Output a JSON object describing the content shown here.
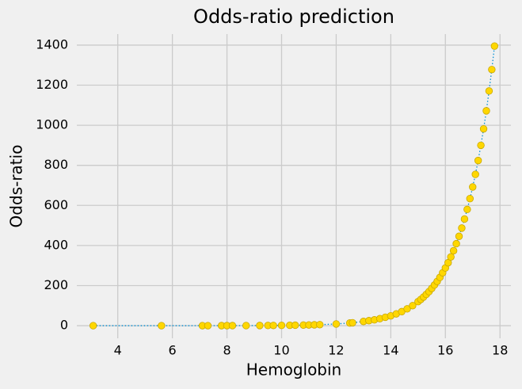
{
  "chart_data": {
    "type": "scatter",
    "title": "Odds-ratio prediction",
    "x_label": "Hemoglobin",
    "y_label": "Odds-ratio",
    "x": [
      3.1,
      5.6,
      7.1,
      7.3,
      7.8,
      8.0,
      8.2,
      8.7,
      9.2,
      9.5,
      9.7,
      10.0,
      10.3,
      10.5,
      10.8,
      11.0,
      11.2,
      11.4,
      12.0,
      12.5,
      12.6,
      13.0,
      13.2,
      13.4,
      13.6,
      13.8,
      14.0,
      14.2,
      14.4,
      14.6,
      14.8,
      15.0,
      15.1,
      15.2,
      15.3,
      15.4,
      15.5,
      15.6,
      15.7,
      15.8,
      15.9,
      16.0,
      16.1,
      16.2,
      16.3,
      16.4,
      16.5,
      16.6,
      16.7,
      16.8,
      16.9,
      17.0,
      17.1,
      17.2,
      17.3,
      17.4,
      17.5,
      17.6,
      17.7,
      17.8
    ],
    "values": [
      0.003,
      0.03,
      0.12,
      0.14,
      0.21,
      0.25,
      0.3,
      0.47,
      0.74,
      0.96,
      1.1,
      1.5,
      1.9,
      2.3,
      3.0,
      3.5,
      4.2,
      5.0,
      8.5,
      13.2,
      14.5,
      21,
      25,
      29,
      35,
      42,
      49,
      59,
      70,
      84,
      100,
      120,
      131,
      143,
      156,
      170,
      186,
      203,
      221,
      241,
      264,
      288,
      314,
      343,
      374,
      409,
      446,
      487,
      532,
      580,
      634,
      692,
      755,
      824,
      900,
      982,
      1072,
      1171,
      1278,
      1395
    ],
    "color": "#ffd700",
    "line_color": "#008fd5",
    "xlim": [
      2.5,
      18.4
    ],
    "ylim": [
      -63,
      1455
    ],
    "xticks": [
      4,
      6,
      8,
      10,
      12,
      14,
      16,
      18
    ],
    "yticks": [
      0,
      200,
      400,
      600,
      800,
      1000,
      1200,
      1400
    ],
    "grid": true
  }
}
